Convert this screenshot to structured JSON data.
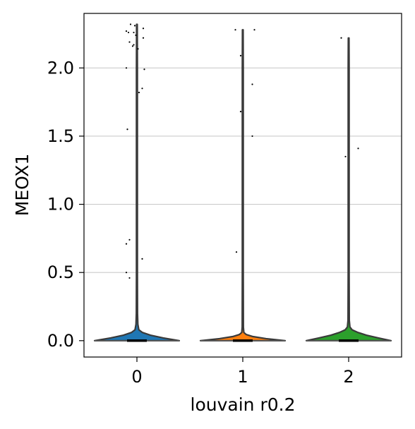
{
  "chart_data": {
    "type": "violin",
    "title": "",
    "xlabel": "louvain r0.2",
    "ylabel": "MEOX1",
    "categories": [
      "0",
      "1",
      "2"
    ],
    "category_colors": [
      "#1f77b4",
      "#ff7f0e",
      "#2ca02c"
    ],
    "ylim": [
      -0.12,
      2.4
    ],
    "yticks": [
      0.0,
      0.5,
      1.0,
      1.5,
      2.0
    ],
    "ytick_labels": [
      "0.0",
      "0.5",
      "1.0",
      "1.5",
      "2.0"
    ],
    "xlim": [
      -0.5,
      2.5
    ],
    "grid": {
      "y": true,
      "x": false
    },
    "violins": [
      {
        "category": "0",
        "max": 2.32,
        "median": 0.0,
        "profile": [
          [
            0.0,
            1.0
          ],
          [
            0.02,
            0.62
          ],
          [
            0.04,
            0.32
          ],
          [
            0.06,
            0.13
          ],
          [
            0.08,
            0.045
          ],
          [
            0.12,
            0.022
          ],
          [
            0.2,
            0.014
          ],
          [
            0.5,
            0.011
          ],
          [
            1.0,
            0.011
          ],
          [
            1.5,
            0.011
          ],
          [
            2.0,
            0.011
          ],
          [
            2.32,
            0.008
          ]
        ]
      },
      {
        "category": "1",
        "max": 2.28,
        "median": 0.0,
        "profile": [
          [
            0.0,
            1.0
          ],
          [
            0.015,
            0.55
          ],
          [
            0.03,
            0.24
          ],
          [
            0.045,
            0.08
          ],
          [
            0.06,
            0.025
          ],
          [
            0.1,
            0.014
          ],
          [
            0.5,
            0.011
          ],
          [
            1.0,
            0.011
          ],
          [
            1.5,
            0.011
          ],
          [
            2.0,
            0.011
          ],
          [
            2.28,
            0.008
          ]
        ]
      },
      {
        "category": "2",
        "max": 2.22,
        "median": 0.0,
        "profile": [
          [
            0.0,
            1.0
          ],
          [
            0.02,
            0.7
          ],
          [
            0.04,
            0.42
          ],
          [
            0.06,
            0.22
          ],
          [
            0.08,
            0.08
          ],
          [
            0.1,
            0.03
          ],
          [
            0.15,
            0.015
          ],
          [
            0.5,
            0.011
          ],
          [
            1.0,
            0.011
          ],
          [
            1.5,
            0.011
          ],
          [
            2.0,
            0.011
          ],
          [
            2.22,
            0.008
          ]
        ]
      }
    ],
    "points": [
      {
        "category": "0",
        "y": 2.32,
        "jitter": -0.06
      },
      {
        "category": "0",
        "y": 2.31,
        "jitter": -0.02
      },
      {
        "category": "0",
        "y": 2.29,
        "jitter": 0.06
      },
      {
        "category": "0",
        "y": 2.27,
        "jitter": -0.1
      },
      {
        "category": "0",
        "y": 2.26,
        "jitter": -0.08
      },
      {
        "category": "0",
        "y": 2.26,
        "jitter": -0.03
      },
      {
        "category": "0",
        "y": 2.24,
        "jitter": -0.01
      },
      {
        "category": "0",
        "y": 2.22,
        "jitter": 0.06
      },
      {
        "category": "0",
        "y": 2.19,
        "jitter": -0.07
      },
      {
        "category": "0",
        "y": 2.17,
        "jitter": -0.03
      },
      {
        "category": "0",
        "y": 2.16,
        "jitter": -0.04
      },
      {
        "category": "0",
        "y": 2.14,
        "jitter": 0.01
      },
      {
        "category": "0",
        "y": 1.99,
        "jitter": 0.07
      },
      {
        "category": "0",
        "y": 2.0,
        "jitter": -0.1
      },
      {
        "category": "0",
        "y": 1.85,
        "jitter": 0.05
      },
      {
        "category": "0",
        "y": 1.82,
        "jitter": 0.02
      },
      {
        "category": "0",
        "y": 1.55,
        "jitter": -0.09
      },
      {
        "category": "0",
        "y": 0.74,
        "jitter": -0.07
      },
      {
        "category": "0",
        "y": 0.71,
        "jitter": -0.1
      },
      {
        "category": "0",
        "y": 0.6,
        "jitter": 0.05
      },
      {
        "category": "0",
        "y": 0.5,
        "jitter": -0.1
      },
      {
        "category": "0",
        "y": 0.46,
        "jitter": -0.07
      },
      {
        "category": "1",
        "y": 2.28,
        "jitter": -0.07
      },
      {
        "category": "1",
        "y": 2.28,
        "jitter": 0.11
      },
      {
        "category": "1",
        "y": 2.09,
        "jitter": -0.02
      },
      {
        "category": "1",
        "y": 1.88,
        "jitter": 0.09
      },
      {
        "category": "1",
        "y": 1.68,
        "jitter": -0.02
      },
      {
        "category": "1",
        "y": 1.5,
        "jitter": 0.09
      },
      {
        "category": "1",
        "y": 0.65,
        "jitter": -0.06
      },
      {
        "category": "2",
        "y": 2.22,
        "jitter": -0.07
      },
      {
        "category": "2",
        "y": 1.41,
        "jitter": 0.09
      },
      {
        "category": "2",
        "y": 1.35,
        "jitter": -0.03
      }
    ]
  }
}
